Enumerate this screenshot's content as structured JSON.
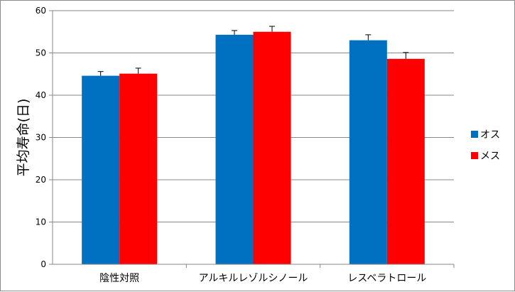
{
  "chart_data": {
    "type": "bar",
    "title": "",
    "xlabel": "",
    "ylabel": "平均寿命(日)",
    "ylim": [
      0,
      60
    ],
    "yticks": [
      0,
      10,
      20,
      30,
      40,
      50,
      60
    ],
    "grid": true,
    "legend_position": "right",
    "categories": [
      "陰性対照",
      "アルキルレゾルシノール",
      "レスベラトロール"
    ],
    "series": [
      {
        "name": "オス",
        "color": "#0070C0",
        "values": [
          44.6,
          54.3,
          53.0
        ],
        "errors": [
          1.0,
          1.0,
          1.3
        ]
      },
      {
        "name": "メス",
        "color": "#FF0000",
        "values": [
          45.1,
          55.0,
          48.6
        ],
        "errors": [
          1.3,
          1.3,
          1.5
        ]
      }
    ]
  }
}
